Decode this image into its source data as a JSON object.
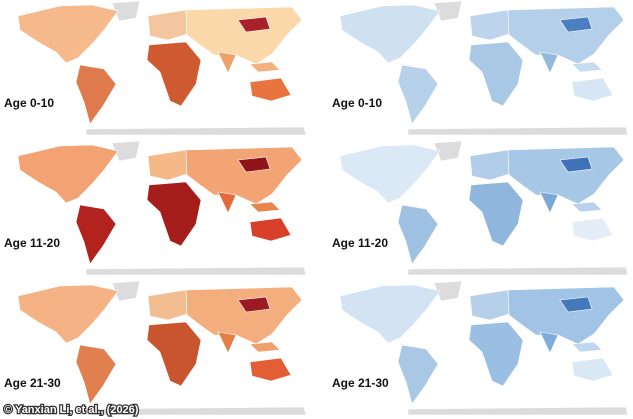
{
  "panels": [
    {
      "label": "Age 0-10"
    },
    {
      "label": "Age 0-10"
    },
    {
      "label": "Age 11-20"
    },
    {
      "label": "Age 11-20"
    },
    {
      "label": "Age 21-30"
    },
    {
      "label": "Age 21-30"
    }
  ],
  "credit": "© Yanxian Li, et al., (2026)"
}
